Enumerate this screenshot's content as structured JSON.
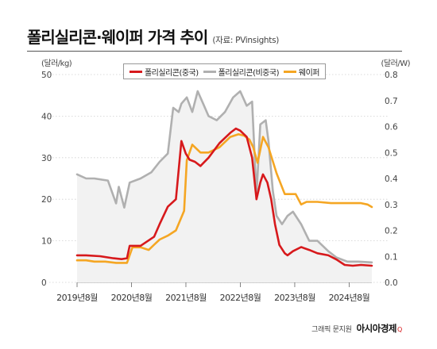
{
  "header": {
    "title": "폴리실리콘·웨이퍼 가격 추이",
    "source": "(자료: PVinsights)"
  },
  "footer": {
    "credit": "그래픽 문지원",
    "brand": "아시아경제",
    "brand_mark": "Q"
  },
  "colors": {
    "china_poly": "#d7191c",
    "non_china_poly": "#b0b0b0",
    "wafer": "#f5a623",
    "area_fill": "#f2f2f2"
  },
  "chart_data": {
    "type": "line",
    "left_unit": "(달러/kg)",
    "right_unit": "(달러/W)",
    "y_left_ticks": [
      "50",
      "40",
      "30",
      "20",
      "10",
      "0"
    ],
    "y_right_ticks": [
      "0.8",
      "0.7",
      "0.6",
      "0.5",
      "0.4",
      "0.3",
      "0.2",
      "0.1",
      "0.0"
    ],
    "ylim_left": [
      0,
      50
    ],
    "ylim_right": [
      0,
      0.8
    ],
    "x_ticks": [
      "2019년8월",
      "2020년8월",
      "2021년8월",
      "2022년8월",
      "2023년8월",
      "2024년8월"
    ],
    "x_tick_dates": [
      2019.583,
      2020.583,
      2021.583,
      2022.583,
      2023.583,
      2024.583
    ],
    "x_range": [
      2019.583,
      2025.0
    ],
    "legend_position": "top",
    "series": [
      {
        "name": "폴리실리콘(중국)",
        "axis": "left",
        "color": "#d7191c",
        "x": [
          2019.583,
          2019.75,
          2020.0,
          2020.25,
          2020.4,
          2020.5,
          2020.55,
          2020.75,
          2021.0,
          2021.1,
          2021.25,
          2021.4,
          2021.5,
          2021.58,
          2021.65,
          2021.75,
          2021.85,
          2022.0,
          2022.2,
          2022.4,
          2022.5,
          2022.58,
          2022.7,
          2022.8,
          2022.88,
          2022.95,
          2023.0,
          2023.08,
          2023.15,
          2023.22,
          2023.3,
          2023.4,
          2023.45,
          2023.55,
          2023.7,
          2023.85,
          2024.0,
          2024.2,
          2024.35,
          2024.5,
          2024.65,
          2024.8,
          2025.0
        ],
        "y": [
          6.5,
          6.5,
          6.3,
          5.8,
          5.6,
          5.8,
          8.8,
          8.8,
          11.0,
          14.0,
          18.2,
          20.0,
          34.0,
          31.0,
          29.5,
          29.0,
          28.0,
          30.0,
          33.5,
          36.0,
          37.0,
          36.5,
          35.0,
          30.0,
          20.0,
          24.0,
          26.0,
          24.0,
          20.0,
          14.0,
          9.0,
          7.0,
          6.5,
          7.5,
          8.5,
          7.8,
          7.0,
          6.5,
          5.5,
          4.2,
          4.0,
          4.2,
          4.0
        ]
      },
      {
        "name": "폴리실리콘(비중국)",
        "axis": "left",
        "color": "#b0b0b0",
        "x": [
          2019.583,
          2019.75,
          2019.9,
          2020.15,
          2020.3,
          2020.35,
          2020.45,
          2020.55,
          2020.75,
          2020.95,
          2021.1,
          2021.25,
          2021.35,
          2021.45,
          2021.5,
          2021.6,
          2021.7,
          2021.8,
          2021.9,
          2022.0,
          2022.15,
          2022.3,
          2022.45,
          2022.58,
          2022.7,
          2022.8,
          2022.88,
          2022.95,
          2023.05,
          2023.1,
          2023.18,
          2023.25,
          2023.35,
          2023.45,
          2023.55,
          2023.7,
          2023.85,
          2024.0,
          2024.2,
          2024.35,
          2024.55,
          2024.75,
          2025.0
        ],
        "y": [
          26.0,
          25.0,
          25.0,
          24.5,
          19.0,
          23.0,
          18.0,
          24.0,
          25.0,
          26.5,
          29.0,
          31.0,
          42.0,
          41.0,
          43.0,
          44.5,
          41.0,
          46.0,
          43.0,
          40.0,
          39.0,
          41.0,
          44.5,
          46.0,
          42.5,
          43.5,
          21.0,
          38.0,
          39.0,
          34.0,
          22.0,
          16.0,
          14.0,
          16.0,
          17.0,
          14.0,
          10.0,
          10.0,
          7.5,
          6.0,
          5.0,
          5.0,
          4.8
        ]
      },
      {
        "name": "웨이퍼",
        "axis": "right",
        "color": "#f5a623",
        "x": [
          2019.583,
          2019.75,
          2019.9,
          2020.1,
          2020.3,
          2020.5,
          2020.6,
          2020.75,
          2020.9,
          2021.0,
          2021.1,
          2021.25,
          2021.4,
          2021.55,
          2021.6,
          2021.7,
          2021.85,
          2022.0,
          2022.2,
          2022.4,
          2022.55,
          2022.65,
          2022.75,
          2022.82,
          2022.9,
          2023.0,
          2023.1,
          2023.25,
          2023.4,
          2023.6,
          2023.7,
          2023.8,
          2024.0,
          2024.25,
          2024.5,
          2024.8,
          2024.92,
          2025.0
        ],
        "y": [
          0.085,
          0.085,
          0.08,
          0.08,
          0.075,
          0.075,
          0.135,
          0.135,
          0.125,
          0.145,
          0.165,
          0.18,
          0.2,
          0.275,
          0.47,
          0.53,
          0.5,
          0.5,
          0.52,
          0.56,
          0.57,
          0.565,
          0.55,
          0.52,
          0.46,
          0.56,
          0.52,
          0.42,
          0.34,
          0.34,
          0.3,
          0.31,
          0.31,
          0.305,
          0.305,
          0.305,
          0.3,
          0.29
        ]
      }
    ]
  }
}
